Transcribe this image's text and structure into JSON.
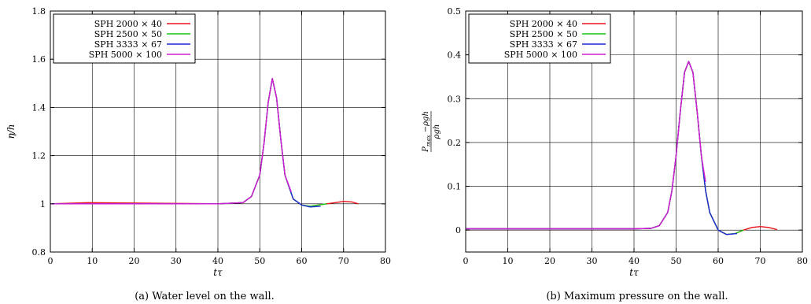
{
  "chart_data": [
    {
      "type": "line",
      "caption": "(a) Water level on the wall.",
      "xlabel": "tτ",
      "ylabel": "η/h",
      "xlim": [
        0,
        80
      ],
      "ylim": [
        0.8,
        1.8
      ],
      "xticks": [
        0,
        10,
        20,
        30,
        40,
        50,
        60,
        70,
        80
      ],
      "yticks": [
        0.8,
        1,
        1.2,
        1.4,
        1.6,
        1.8
      ],
      "ytick_labels": [
        "0.8",
        "1",
        "1.2",
        "1.4",
        "1.6",
        "1.8"
      ],
      "grid": true,
      "legend_position": "top-left",
      "series": [
        {
          "name": "SPH 2000 × 40",
          "color": "#e8141b",
          "x": [
            0,
            9,
            40,
            46,
            48,
            50,
            51,
            52,
            53,
            54,
            55,
            56,
            58,
            60,
            62,
            64,
            66,
            68,
            70,
            72,
            73.5
          ],
          "y": [
            1.0,
            1.005,
            1.0,
            1.005,
            1.03,
            1.12,
            1.25,
            1.42,
            1.52,
            1.44,
            1.27,
            1.12,
            1.02,
            0.995,
            0.99,
            0.995,
            1.0,
            1.005,
            1.01,
            1.008,
            1.0
          ]
        },
        {
          "name": "SPH 2500 × 50",
          "color": "#19c819",
          "x": [
            0,
            40,
            46,
            48,
            50,
            51,
            52,
            53,
            54,
            55,
            56,
            58,
            60,
            62,
            64,
            66
          ],
          "y": [
            1.0,
            1.0,
            1.005,
            1.03,
            1.12,
            1.25,
            1.42,
            1.52,
            1.44,
            1.27,
            1.12,
            1.02,
            0.995,
            0.99,
            0.995,
            1.0
          ]
        },
        {
          "name": "SPH 3333 × 67",
          "color": "#1a2ad6",
          "x": [
            0,
            40,
            46,
            48,
            50,
            51,
            52,
            53,
            54,
            55,
            56,
            58,
            60,
            62,
            64.5
          ],
          "y": [
            1.0,
            1.0,
            1.005,
            1.03,
            1.12,
            1.25,
            1.42,
            1.52,
            1.44,
            1.27,
            1.12,
            1.02,
            0.995,
            0.987,
            0.99
          ]
        },
        {
          "name": "SPH 5000 × 100",
          "color": "#d31ed3",
          "x": [
            0,
            40,
            46,
            48,
            50,
            51,
            52,
            53,
            54,
            55,
            56,
            57.5
          ],
          "y": [
            1.0,
            1.0,
            1.005,
            1.03,
            1.12,
            1.25,
            1.42,
            1.52,
            1.44,
            1.27,
            1.12,
            1.05
          ]
        }
      ]
    },
    {
      "type": "line",
      "caption": "(b) Maximum pressure on the wall.",
      "xlabel": "tτ",
      "ylabel": "(P_max − ρgh)/(ρgh)",
      "ylabel_numerator": "P",
      "ylabel_numerator_sub": "max",
      "ylabel_numerator_rest": " −ρgh",
      "ylabel_denominator": "ρgh",
      "xlim": [
        0,
        80
      ],
      "ylim": [
        -0.05,
        0.5
      ],
      "xticks": [
        0,
        10,
        20,
        30,
        40,
        50,
        60,
        70,
        80
      ],
      "yticks": [
        0,
        0.1,
        0.2,
        0.3,
        0.4,
        0.5
      ],
      "ytick_labels": [
        "0",
        "0.1",
        "0.2",
        "0.3",
        "0.4",
        "0.5"
      ],
      "grid": true,
      "legend_position": "top-left",
      "series": [
        {
          "name": "SPH 2000 × 40",
          "color": "#e8141b",
          "x": [
            0,
            40,
            44,
            46,
            48,
            49,
            50,
            51,
            52,
            53,
            54,
            55,
            56,
            57,
            58,
            60,
            62,
            64,
            66,
            68,
            70,
            72,
            74
          ],
          "y": [
            0.003,
            0.003,
            0.004,
            0.01,
            0.04,
            0.09,
            0.17,
            0.27,
            0.36,
            0.385,
            0.36,
            0.27,
            0.17,
            0.09,
            0.04,
            0.0,
            -0.01,
            -0.008,
            0.0,
            0.006,
            0.008,
            0.006,
            0.001
          ]
        },
        {
          "name": "SPH 2500 × 50",
          "color": "#19c819",
          "x": [
            0,
            40,
            44,
            46,
            48,
            49,
            50,
            51,
            52,
            53,
            54,
            55,
            56,
            57,
            58,
            60,
            62,
            64,
            66
          ],
          "y": [
            0.003,
            0.003,
            0.004,
            0.01,
            0.04,
            0.09,
            0.17,
            0.27,
            0.36,
            0.385,
            0.36,
            0.27,
            0.17,
            0.09,
            0.04,
            0.0,
            -0.01,
            -0.008,
            0.0
          ]
        },
        {
          "name": "SPH 3333 × 67",
          "color": "#1a2ad6",
          "x": [
            0,
            40,
            44,
            46,
            48,
            49,
            50,
            51,
            52,
            53,
            54,
            55,
            56,
            57,
            58,
            60,
            62,
            64.5
          ],
          "y": [
            0.003,
            0.003,
            0.004,
            0.01,
            0.04,
            0.09,
            0.17,
            0.27,
            0.36,
            0.385,
            0.36,
            0.27,
            0.17,
            0.09,
            0.04,
            0.0,
            -0.01,
            -0.008
          ]
        },
        {
          "name": "SPH 5000 × 100",
          "color": "#d31ed3",
          "x": [
            0,
            40,
            44,
            46,
            48,
            49,
            50,
            51,
            52,
            53,
            54,
            55,
            56,
            57
          ],
          "y": [
            0.003,
            0.003,
            0.004,
            0.01,
            0.04,
            0.09,
            0.17,
            0.27,
            0.36,
            0.385,
            0.36,
            0.27,
            0.17,
            0.11
          ]
        }
      ]
    }
  ]
}
